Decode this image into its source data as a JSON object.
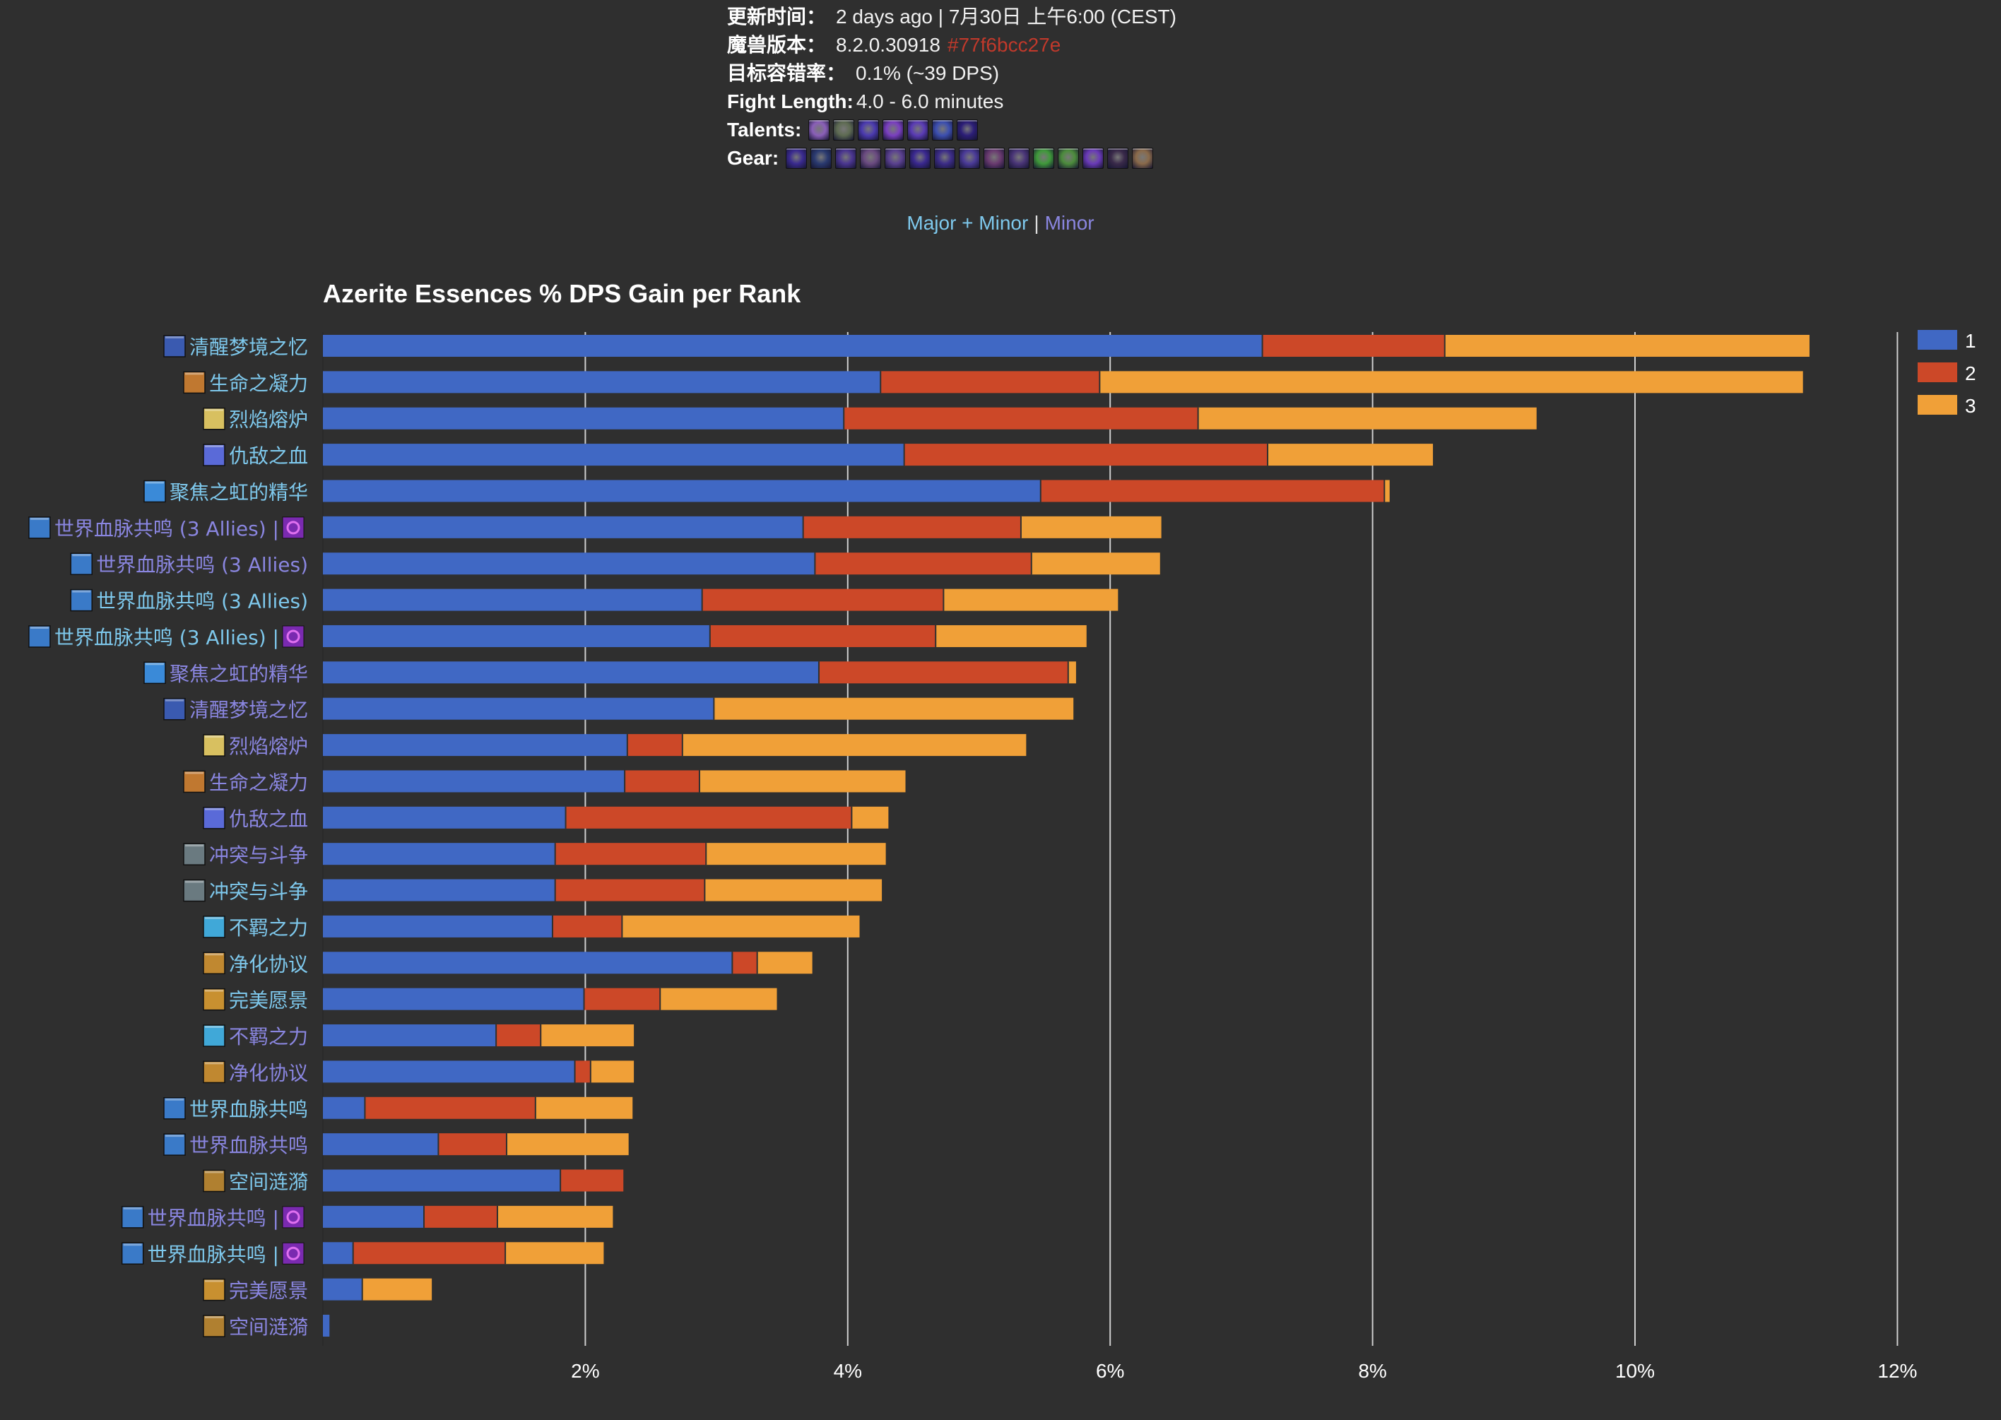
{
  "meta": {
    "rows": [
      {
        "key": "更新时间：",
        "value": "2 days ago | 7月30日 上午6:00 (CEST)"
      },
      {
        "key": "魔兽版本：",
        "value": "8.2.0.30918",
        "hash": "#77f6bcc27e"
      },
      {
        "key": "目标容错率：",
        "value": "0.1% (~39 DPS)"
      },
      {
        "key": "Fight Length:",
        "value": "4.0 - 6.0 minutes"
      }
    ],
    "talents_label": "Talents:",
    "talents": [
      {
        "icon": "talent-icon",
        "color": "#8a5fb8"
      },
      {
        "icon": "talent-icon",
        "color": "#5e6b52"
      },
      {
        "icon": "talent-icon",
        "color": "#4b3ab0"
      },
      {
        "icon": "talent-icon",
        "color": "#7a3fc0"
      },
      {
        "icon": "talent-icon",
        "color": "#5a3bb5"
      },
      {
        "icon": "talent-icon",
        "color": "#3c4fb0"
      },
      {
        "icon": "talent-icon",
        "color": "#2c1e78"
      }
    ],
    "gear_label": "Gear:",
    "gear": [
      {
        "icon": "gear-head-icon",
        "color": "#3a2a90"
      },
      {
        "icon": "gear-neck-icon",
        "color": "#2a3a70"
      },
      {
        "icon": "gear-shoulder-icon",
        "color": "#4a3590"
      },
      {
        "icon": "gear-back-icon",
        "color": "#6a4a80"
      },
      {
        "icon": "gear-chest-icon",
        "color": "#5a4090"
      },
      {
        "icon": "gear-wrist-icon",
        "color": "#3a2890"
      },
      {
        "icon": "gear-hands-icon",
        "color": "#3c2c88"
      },
      {
        "icon": "gear-waist-icon",
        "color": "#4a3a98"
      },
      {
        "icon": "gear-legs-icon",
        "color": "#6a3a70"
      },
      {
        "icon": "gear-feet-icon",
        "color": "#4a3578"
      },
      {
        "icon": "gear-ring-icon",
        "color": "#3f9a3a"
      },
      {
        "icon": "gear-ring2-icon",
        "color": "#4c8c3c"
      },
      {
        "icon": "gear-trinket-icon",
        "color": "#6a3ab8"
      },
      {
        "icon": "gear-trinket2-icon",
        "color": "#3a2a4a"
      },
      {
        "icon": "gear-weapon-icon",
        "color": "#8a6a4a"
      }
    ]
  },
  "switch": {
    "major_minor": "Major + Minor",
    "separator": "|",
    "minor": "Minor"
  },
  "colors": {
    "major_label": "#7ec8ec",
    "minor_label": "#8a86e0",
    "rank1": "#4068c4",
    "rank2": "#cc4828",
    "rank3": "#f0a038"
  },
  "chart_data": {
    "type": "bar",
    "orientation": "horizontal",
    "stacked": true,
    "title": "Azerite Essences % DPS Gain per Rank",
    "xlabel": "",
    "ylabel": "",
    "xlim": [
      0,
      12
    ],
    "xticks": [
      "2%",
      "4%",
      "6%",
      "8%",
      "10%",
      "12%"
    ],
    "xtick_values": [
      2,
      4,
      6,
      8,
      10,
      12
    ],
    "grid": true,
    "legend": {
      "position": "top-right",
      "entries": [
        "1",
        "2",
        "3"
      ]
    },
    "categories": [
      {
        "label": "清醒梦境之忆",
        "kind": "major",
        "icon": "memory-of-lucid-dreams-icon",
        "icon_color": "#3a5ab0",
        "suffix_icon": false
      },
      {
        "label": "生命之凝力",
        "kind": "major",
        "icon": "life-force-icon",
        "icon_color": "#c07830",
        "suffix_icon": false
      },
      {
        "label": "烈焰熔炉",
        "kind": "major",
        "icon": "crucible-of-flame-icon",
        "icon_color": "#d8c060",
        "suffix_icon": false
      },
      {
        "label": "仇敌之血",
        "kind": "major",
        "icon": "blood-of-the-enemy-icon",
        "icon_color": "#5a6ad8",
        "suffix_icon": false
      },
      {
        "label": "聚焦之虹的精华",
        "kind": "major",
        "icon": "focusing-iris-icon",
        "icon_color": "#3a8ad8",
        "suffix_icon": false
      },
      {
        "label": "世界血脉共鸣 (3 Allies) |",
        "kind": "minor",
        "icon": "worldvein-resonance-icon",
        "icon_color": "#3a7ac8",
        "suffix_icon": true
      },
      {
        "label": "世界血脉共鸣 (3 Allies)",
        "kind": "minor",
        "icon": "worldvein-resonance-icon",
        "icon_color": "#3a7ac8",
        "suffix_icon": false
      },
      {
        "label": "世界血脉共鸣 (3 Allies)",
        "kind": "major",
        "icon": "worldvein-resonance-icon",
        "icon_color": "#3a7ac8",
        "suffix_icon": false
      },
      {
        "label": "世界血脉共鸣 (3 Allies) |",
        "kind": "major",
        "icon": "worldvein-resonance-icon",
        "icon_color": "#3a7ac8",
        "suffix_icon": true
      },
      {
        "label": "聚焦之虹的精华",
        "kind": "minor",
        "icon": "focusing-iris-icon",
        "icon_color": "#3a8ad8",
        "suffix_icon": false
      },
      {
        "label": "清醒梦境之忆",
        "kind": "minor",
        "icon": "memory-of-lucid-dreams-icon",
        "icon_color": "#3a5ab0",
        "suffix_icon": false
      },
      {
        "label": "烈焰熔炉",
        "kind": "minor",
        "icon": "crucible-of-flame-icon",
        "icon_color": "#d8c060",
        "suffix_icon": false
      },
      {
        "label": "生命之凝力",
        "kind": "minor",
        "icon": "life-force-icon",
        "icon_color": "#c07830",
        "suffix_icon": false
      },
      {
        "label": "仇敌之血",
        "kind": "minor",
        "icon": "blood-of-the-enemy-icon",
        "icon_color": "#5a6ad8",
        "suffix_icon": false
      },
      {
        "label": "冲突与斗争",
        "kind": "minor",
        "icon": "conflict-and-strife-icon",
        "icon_color": "#6a7a80",
        "suffix_icon": false
      },
      {
        "label": "冲突与斗争",
        "kind": "major",
        "icon": "conflict-and-strife-icon",
        "icon_color": "#6a7a80",
        "suffix_icon": false
      },
      {
        "label": "不羁之力",
        "kind": "major",
        "icon": "unbound-force-icon",
        "icon_color": "#40a8d8",
        "suffix_icon": false
      },
      {
        "label": "净化协议",
        "kind": "major",
        "icon": "purification-protocol-icon",
        "icon_color": "#c08830",
        "suffix_icon": false
      },
      {
        "label": "完美愿景",
        "kind": "major",
        "icon": "vision-of-perfection-icon",
        "icon_color": "#c89030",
        "suffix_icon": false
      },
      {
        "label": "不羁之力",
        "kind": "minor",
        "icon": "unbound-force-icon",
        "icon_color": "#40a8d8",
        "suffix_icon": false
      },
      {
        "label": "净化协议",
        "kind": "minor",
        "icon": "purification-protocol-icon",
        "icon_color": "#c08830",
        "suffix_icon": false
      },
      {
        "label": "世界血脉共鸣",
        "kind": "major",
        "icon": "worldvein-resonance-icon",
        "icon_color": "#3a7ac8",
        "suffix_icon": false
      },
      {
        "label": "世界血脉共鸣",
        "kind": "minor",
        "icon": "worldvein-resonance-icon",
        "icon_color": "#3a7ac8",
        "suffix_icon": false
      },
      {
        "label": "空间涟漪",
        "kind": "major",
        "icon": "ripple-in-space-icon",
        "icon_color": "#b08030",
        "suffix_icon": false
      },
      {
        "label": "世界血脉共鸣 |",
        "kind": "minor",
        "icon": "worldvein-resonance-icon",
        "icon_color": "#3a7ac8",
        "suffix_icon": true
      },
      {
        "label": "世界血脉共鸣 |",
        "kind": "major",
        "icon": "worldvein-resonance-icon",
        "icon_color": "#3a7ac8",
        "suffix_icon": true
      },
      {
        "label": "完美愿景",
        "kind": "minor",
        "icon": "vision-of-perfection-icon",
        "icon_color": "#c89030",
        "suffix_icon": false
      },
      {
        "label": "空间涟漪",
        "kind": "minor",
        "icon": "ripple-in-space-icon",
        "icon_color": "#b08030",
        "suffix_icon": false
      }
    ],
    "series": [
      {
        "name": "1",
        "color": "#4068c4",
        "values": [
          7.16,
          4.25,
          3.97,
          4.43,
          5.47,
          3.66,
          3.75,
          2.89,
          2.95,
          3.78,
          2.98,
          2.32,
          2.3,
          1.85,
          1.77,
          1.77,
          1.75,
          3.12,
          1.99,
          1.32,
          1.92,
          0.32,
          0.88,
          1.81,
          0.77,
          0.23,
          0.3,
          0.05
        ]
      },
      {
        "name": "2",
        "color": "#cc4828",
        "values": [
          1.39,
          1.67,
          2.7,
          2.77,
          2.62,
          1.66,
          1.65,
          1.84,
          1.72,
          1.9,
          0.0,
          0.42,
          0.57,
          2.18,
          1.15,
          1.14,
          0.53,
          0.19,
          0.58,
          0.34,
          0.12,
          1.3,
          0.52,
          0.48,
          0.56,
          1.16,
          0.0,
          0.0
        ]
      },
      {
        "name": "3",
        "color": "#f0a038",
        "values": [
          2.78,
          5.36,
          2.58,
          1.26,
          0.04,
          1.07,
          0.98,
          1.33,
          1.15,
          0.06,
          2.74,
          2.62,
          1.57,
          0.28,
          1.37,
          1.35,
          1.81,
          0.42,
          0.89,
          0.71,
          0.33,
          0.74,
          0.93,
          0.0,
          0.88,
          0.75,
          0.53,
          0.0
        ]
      }
    ]
  }
}
